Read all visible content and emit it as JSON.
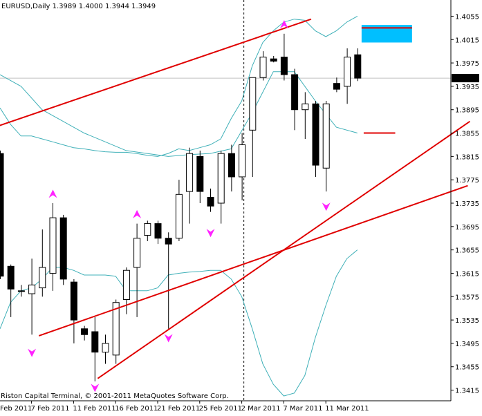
{
  "chart_data": {
    "type": "candlestick",
    "title": "EURUSD,Daily  1.3989 1.4000 1.3944 1.3949",
    "footer": "Riston Capital Terminal, © 2001-2011 MetaQuotes Software Corp.",
    "ylim": [
      1.3405,
      1.4065
    ],
    "last_price": "1.3949",
    "y_ticks": [
      "1.4055",
      "1.4015",
      "1.3975",
      "1.3935",
      "1.3895",
      "1.3855",
      "1.3815",
      "1.3775",
      "1.3735",
      "1.3695",
      "1.3655",
      "1.3615",
      "1.3575",
      "1.3535",
      "1.3495",
      "1.3455",
      "1.3415"
    ],
    "x_ticks": [
      "7 Feb 2011",
      "11 Feb 2011",
      "16 Feb 2011",
      "21 Feb 2011",
      "25 Feb 2011",
      "2 Mar 2011",
      "7 Mar 2011",
      "11 Mar 2011"
    ],
    "x_tick_first": "Feb 2011",
    "candles": [
      {
        "o": 1.382,
        "h": 1.3825,
        "l": 1.3605,
        "c": 1.361
      },
      {
        "o": 1.3627,
        "h": 1.363,
        "l": 1.354,
        "c": 1.3588
      },
      {
        "o": 1.3585,
        "h": 1.3595,
        "l": 1.3575,
        "c": 1.3585
      },
      {
        "o": 1.358,
        "h": 1.364,
        "l": 1.351,
        "c": 1.3595
      },
      {
        "o": 1.359,
        "h": 1.369,
        "l": 1.3575,
        "c": 1.3625
      },
      {
        "o": 1.3615,
        "h": 1.3735,
        "l": 1.3585,
        "c": 1.371
      },
      {
        "o": 1.371,
        "h": 1.3715,
        "l": 1.3595,
        "c": 1.3605
      },
      {
        "o": 1.36,
        "h": 1.3605,
        "l": 1.3495,
        "c": 1.3535
      },
      {
        "o": 1.352,
        "h": 1.3525,
        "l": 1.35,
        "c": 1.351
      },
      {
        "o": 1.3515,
        "h": 1.354,
        "l": 1.343,
        "c": 1.348
      },
      {
        "o": 1.348,
        "h": 1.351,
        "l": 1.346,
        "c": 1.3495
      },
      {
        "o": 1.3475,
        "h": 1.357,
        "l": 1.346,
        "c": 1.3565
      },
      {
        "o": 1.357,
        "h": 1.3625,
        "l": 1.3545,
        "c": 1.362
      },
      {
        "o": 1.3625,
        "h": 1.37,
        "l": 1.354,
        "c": 1.3675
      },
      {
        "o": 1.368,
        "h": 1.3705,
        "l": 1.367,
        "c": 1.37
      },
      {
        "o": 1.37,
        "h": 1.3705,
        "l": 1.3665,
        "c": 1.3675
      },
      {
        "o": 1.3675,
        "h": 1.3685,
        "l": 1.352,
        "c": 1.3665
      },
      {
        "o": 1.3675,
        "h": 1.3775,
        "l": 1.367,
        "c": 1.375
      },
      {
        "o": 1.3755,
        "h": 1.383,
        "l": 1.37,
        "c": 1.382
      },
      {
        "o": 1.3815,
        "h": 1.3825,
        "l": 1.3735,
        "c": 1.3755
      },
      {
        "o": 1.3745,
        "h": 1.376,
        "l": 1.372,
        "c": 1.373
      },
      {
        "o": 1.3735,
        "h": 1.3825,
        "l": 1.37,
        "c": 1.382
      },
      {
        "o": 1.382,
        "h": 1.3835,
        "l": 1.3755,
        "c": 1.378
      },
      {
        "o": 1.378,
        "h": 1.3855,
        "l": 1.374,
        "c": 1.3835
      },
      {
        "o": 1.386,
        "h": 1.395,
        "l": 1.378,
        "c": 1.395
      },
      {
        "o": 1.395,
        "h": 1.3995,
        "l": 1.3945,
        "c": 1.3985
      },
      {
        "o": 1.3982,
        "h": 1.3987,
        "l": 1.3976,
        "c": 1.3978
      },
      {
        "o": 1.3985,
        "h": 1.4025,
        "l": 1.3945,
        "c": 1.3955
      },
      {
        "o": 1.3955,
        "h": 1.3965,
        "l": 1.386,
        "c": 1.3895
      },
      {
        "o": 1.3895,
        "h": 1.3925,
        "l": 1.3845,
        "c": 1.3905
      },
      {
        "o": 1.3905,
        "h": 1.391,
        "l": 1.378,
        "c": 1.38
      },
      {
        "o": 1.3795,
        "h": 1.391,
        "l": 1.3755,
        "c": 1.3905
      },
      {
        "o": 1.394,
        "h": 1.395,
        "l": 1.3925,
        "c": 1.393
      },
      {
        "o": 1.3935,
        "h": 1.4,
        "l": 1.3905,
        "c": 1.3985
      },
      {
        "o": 1.3989,
        "h": 1.4,
        "l": 1.3944,
        "c": 1.3949
      }
    ],
    "x_tick_candles": [
      3,
      7,
      11,
      15,
      19,
      23,
      27,
      31
    ],
    "bollinger_upper": [
      [
        0,
        1.3898
      ],
      [
        1,
        1.387
      ],
      [
        2,
        1.385
      ],
      [
        3,
        1.385
      ],
      [
        4,
        1.3845
      ],
      [
        5,
        1.384
      ],
      [
        6,
        1.3835
      ],
      [
        7,
        1.383
      ],
      [
        8,
        1.3828
      ],
      [
        9,
        1.3825
      ],
      [
        10,
        1.3823
      ],
      [
        11,
        1.3822
      ],
      [
        12,
        1.3822
      ],
      [
        13,
        1.382
      ],
      [
        14,
        1.3817
      ],
      [
        15,
        1.3815
      ],
      [
        16,
        1.382
      ],
      [
        17,
        1.3828
      ],
      [
        18,
        1.3825
      ],
      [
        19,
        1.383
      ],
      [
        20,
        1.3835
      ],
      [
        21,
        1.3845
      ],
      [
        22,
        1.388
      ],
      [
        23,
        1.391
      ],
      [
        24,
        1.397
      ],
      [
        25,
        1.401
      ],
      [
        26,
        1.403
      ],
      [
        27,
        1.4045
      ],
      [
        28,
        1.405
      ],
      [
        29,
        1.4048
      ],
      [
        30,
        1.403
      ],
      [
        31,
        1.402
      ],
      [
        32,
        1.403
      ],
      [
        33,
        1.4045
      ],
      [
        34,
        1.4055
      ]
    ],
    "bollinger_lower": [
      [
        0,
        1.352
      ],
      [
        1,
        1.3565
      ],
      [
        2,
        1.3585
      ],
      [
        3,
        1.359
      ],
      [
        4,
        1.3605
      ],
      [
        5,
        1.3625
      ],
      [
        6,
        1.3625
      ],
      [
        7,
        1.362
      ],
      [
        8,
        1.3612
      ],
      [
        9,
        1.3612
      ],
      [
        10,
        1.3612
      ],
      [
        11,
        1.361
      ],
      [
        12,
        1.3585
      ],
      [
        13,
        1.3585
      ],
      [
        14,
        1.3585
      ],
      [
        15,
        1.359
      ],
      [
        16,
        1.3612
      ],
      [
        17,
        1.3615
      ],
      [
        18,
        1.3617
      ],
      [
        19,
        1.3618
      ],
      [
        20,
        1.362
      ],
      [
        21,
        1.362
      ],
      [
        22,
        1.3605
      ],
      [
        23,
        1.3575
      ],
      [
        24,
        1.352
      ],
      [
        25,
        1.346
      ],
      [
        26,
        1.3425
      ],
      [
        27,
        1.3405
      ],
      [
        28,
        1.341
      ],
      [
        29,
        1.344
      ],
      [
        30,
        1.3505
      ],
      [
        31,
        1.356
      ],
      [
        32,
        1.361
      ],
      [
        33,
        1.364
      ],
      [
        34,
        1.3655
      ]
    ],
    "bollinger_mid_left": [
      [
        0,
        1.3955
      ],
      [
        2,
        1.3935
      ],
      [
        4,
        1.3895
      ],
      [
        6,
        1.3875
      ],
      [
        8,
        1.3855
      ],
      [
        10,
        1.384
      ],
      [
        12,
        1.3825
      ],
      [
        14,
        1.382
      ],
      [
        16,
        1.3815
      ],
      [
        18,
        1.3818
      ],
      [
        20,
        1.382
      ],
      [
        22,
        1.3828
      ]
    ],
    "bollinger_mid_right": [
      [
        22,
        1.3828
      ],
      [
        24,
        1.389
      ],
      [
        26,
        1.396
      ],
      [
        28,
        1.396
      ],
      [
        30,
        1.391
      ],
      [
        32,
        1.3865
      ],
      [
        34,
        1.3855
      ]
    ],
    "trendlines": [
      {
        "from": [
          -0.5,
          1.3865
        ],
        "to": [
          29.6,
          1.405
        ]
      },
      {
        "from": [
          3.7,
          1.3508
        ],
        "to": [
          44.5,
          1.3765
        ]
      },
      {
        "from": [
          9.3,
          1.3435
        ],
        "to": [
          44.7,
          1.3875
        ]
      }
    ],
    "support_line": {
      "from": [
        34.6,
        1.3855
      ],
      "to": [
        37.6,
        1.3855
      ]
    },
    "target_zone": {
      "x0": 34.4,
      "x1": 39.2,
      "top": 1.404,
      "bottom": 1.401,
      "mid": 1.4035
    },
    "vertical_marker_index": 23.2,
    "arrows_up": [
      [
        5,
        1.375
      ],
      [
        13,
        1.3715
      ],
      [
        27,
        1.404
      ]
    ],
    "arrows_down": [
      [
        3,
        1.348
      ],
      [
        9,
        1.342
      ],
      [
        16,
        1.3505
      ],
      [
        20,
        1.3685
      ],
      [
        31,
        1.373
      ]
    ],
    "colors": {
      "bull_candle": "#ffffff",
      "bear_candle": "#000000",
      "bollinger": "#3fb0b8",
      "trendline": "#e00000",
      "arrow": "#ff22ff",
      "target_zone": "#00bfff",
      "price_line": "#c0c0c0"
    }
  }
}
